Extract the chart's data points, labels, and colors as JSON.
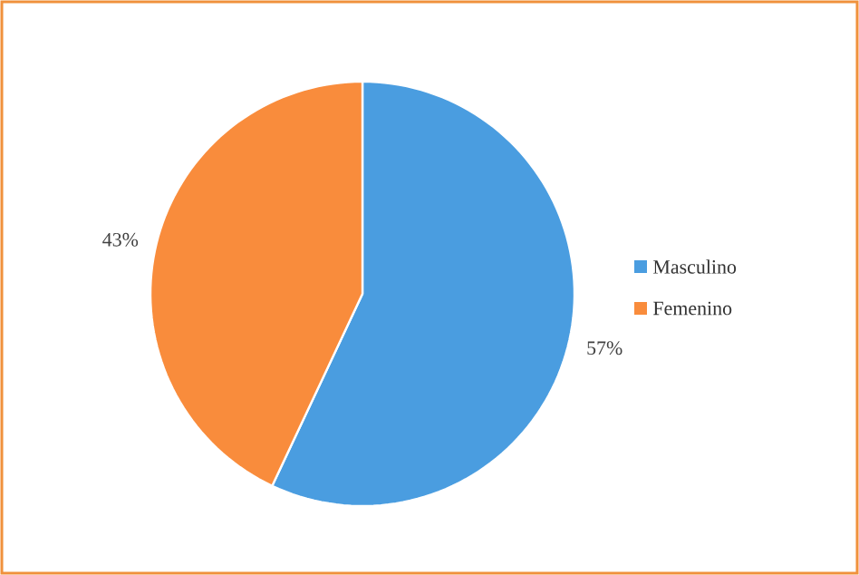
{
  "chart_data": {
    "type": "pie",
    "categories": [
      "Masculino",
      "Femenino"
    ],
    "values": [
      57,
      43
    ],
    "colors": [
      "#4a9de0",
      "#f98c3c"
    ],
    "value_labels": [
      "57%",
      "43%"
    ],
    "legend": "right"
  }
}
